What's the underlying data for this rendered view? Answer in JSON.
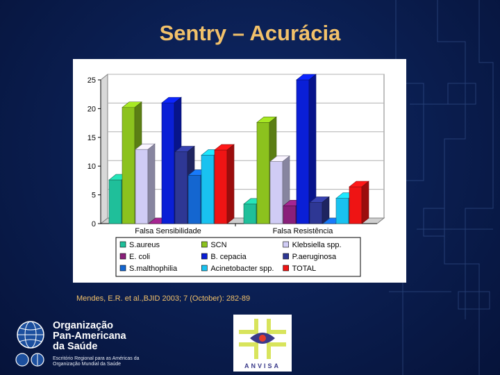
{
  "slide": {
    "title": "Sentry – Acurácia",
    "citation": "Mendes, E.R. et al.,BJID 2003; 7 (October): 282-89"
  },
  "logos": {
    "opas": {
      "name": "Organização\nPan-Americana\nda Saúde",
      "subtitle": "Escritório Regional para as Américas da\nOrganização Mundial da Saúde"
    },
    "anvisa": {
      "name": "ANVISA"
    }
  },
  "chart_data": {
    "type": "bar",
    "style": "3d clustered columns",
    "categories": [
      "Falsa Sensibilidade",
      "Falsa Resistência"
    ],
    "ylim": [
      0,
      25
    ],
    "yticks": [
      0,
      5,
      10,
      15,
      20,
      25
    ],
    "grid": true,
    "legend_position": "bottom",
    "series": [
      {
        "name": "S.aureus",
        "color": "#1fbf9a",
        "values": [
          7.6,
          3.4
        ]
      },
      {
        "name": "SCN",
        "color": "#8cc21e",
        "values": [
          20.2,
          17.6
        ]
      },
      {
        "name": "Klebsiella spp.",
        "color": "#d0ccf5",
        "values": [
          12.9,
          10.8
        ]
      },
      {
        "name": "E. coli",
        "color": "#8a1f7a",
        "values": [
          0,
          3.1
        ]
      },
      {
        "name": "B. cepacia",
        "color": "#0a1fd6",
        "values": [
          21.0,
          25.0
        ]
      },
      {
        "name": "P.aeruginosa",
        "color": "#2e3794",
        "values": [
          12.5,
          3.7
        ]
      },
      {
        "name": "S.malthophilia",
        "color": "#1466d0",
        "values": [
          8.4,
          0
        ]
      },
      {
        "name": "Acinetobacter spp.",
        "color": "#19c2f0",
        "values": [
          11.9,
          4.4
        ]
      },
      {
        "name": "TOTAL",
        "color": "#ef1414",
        "values": [
          12.8,
          6.4
        ]
      }
    ]
  },
  "colors": {
    "title": "#f2c16a",
    "background": "#0a1d4e"
  }
}
